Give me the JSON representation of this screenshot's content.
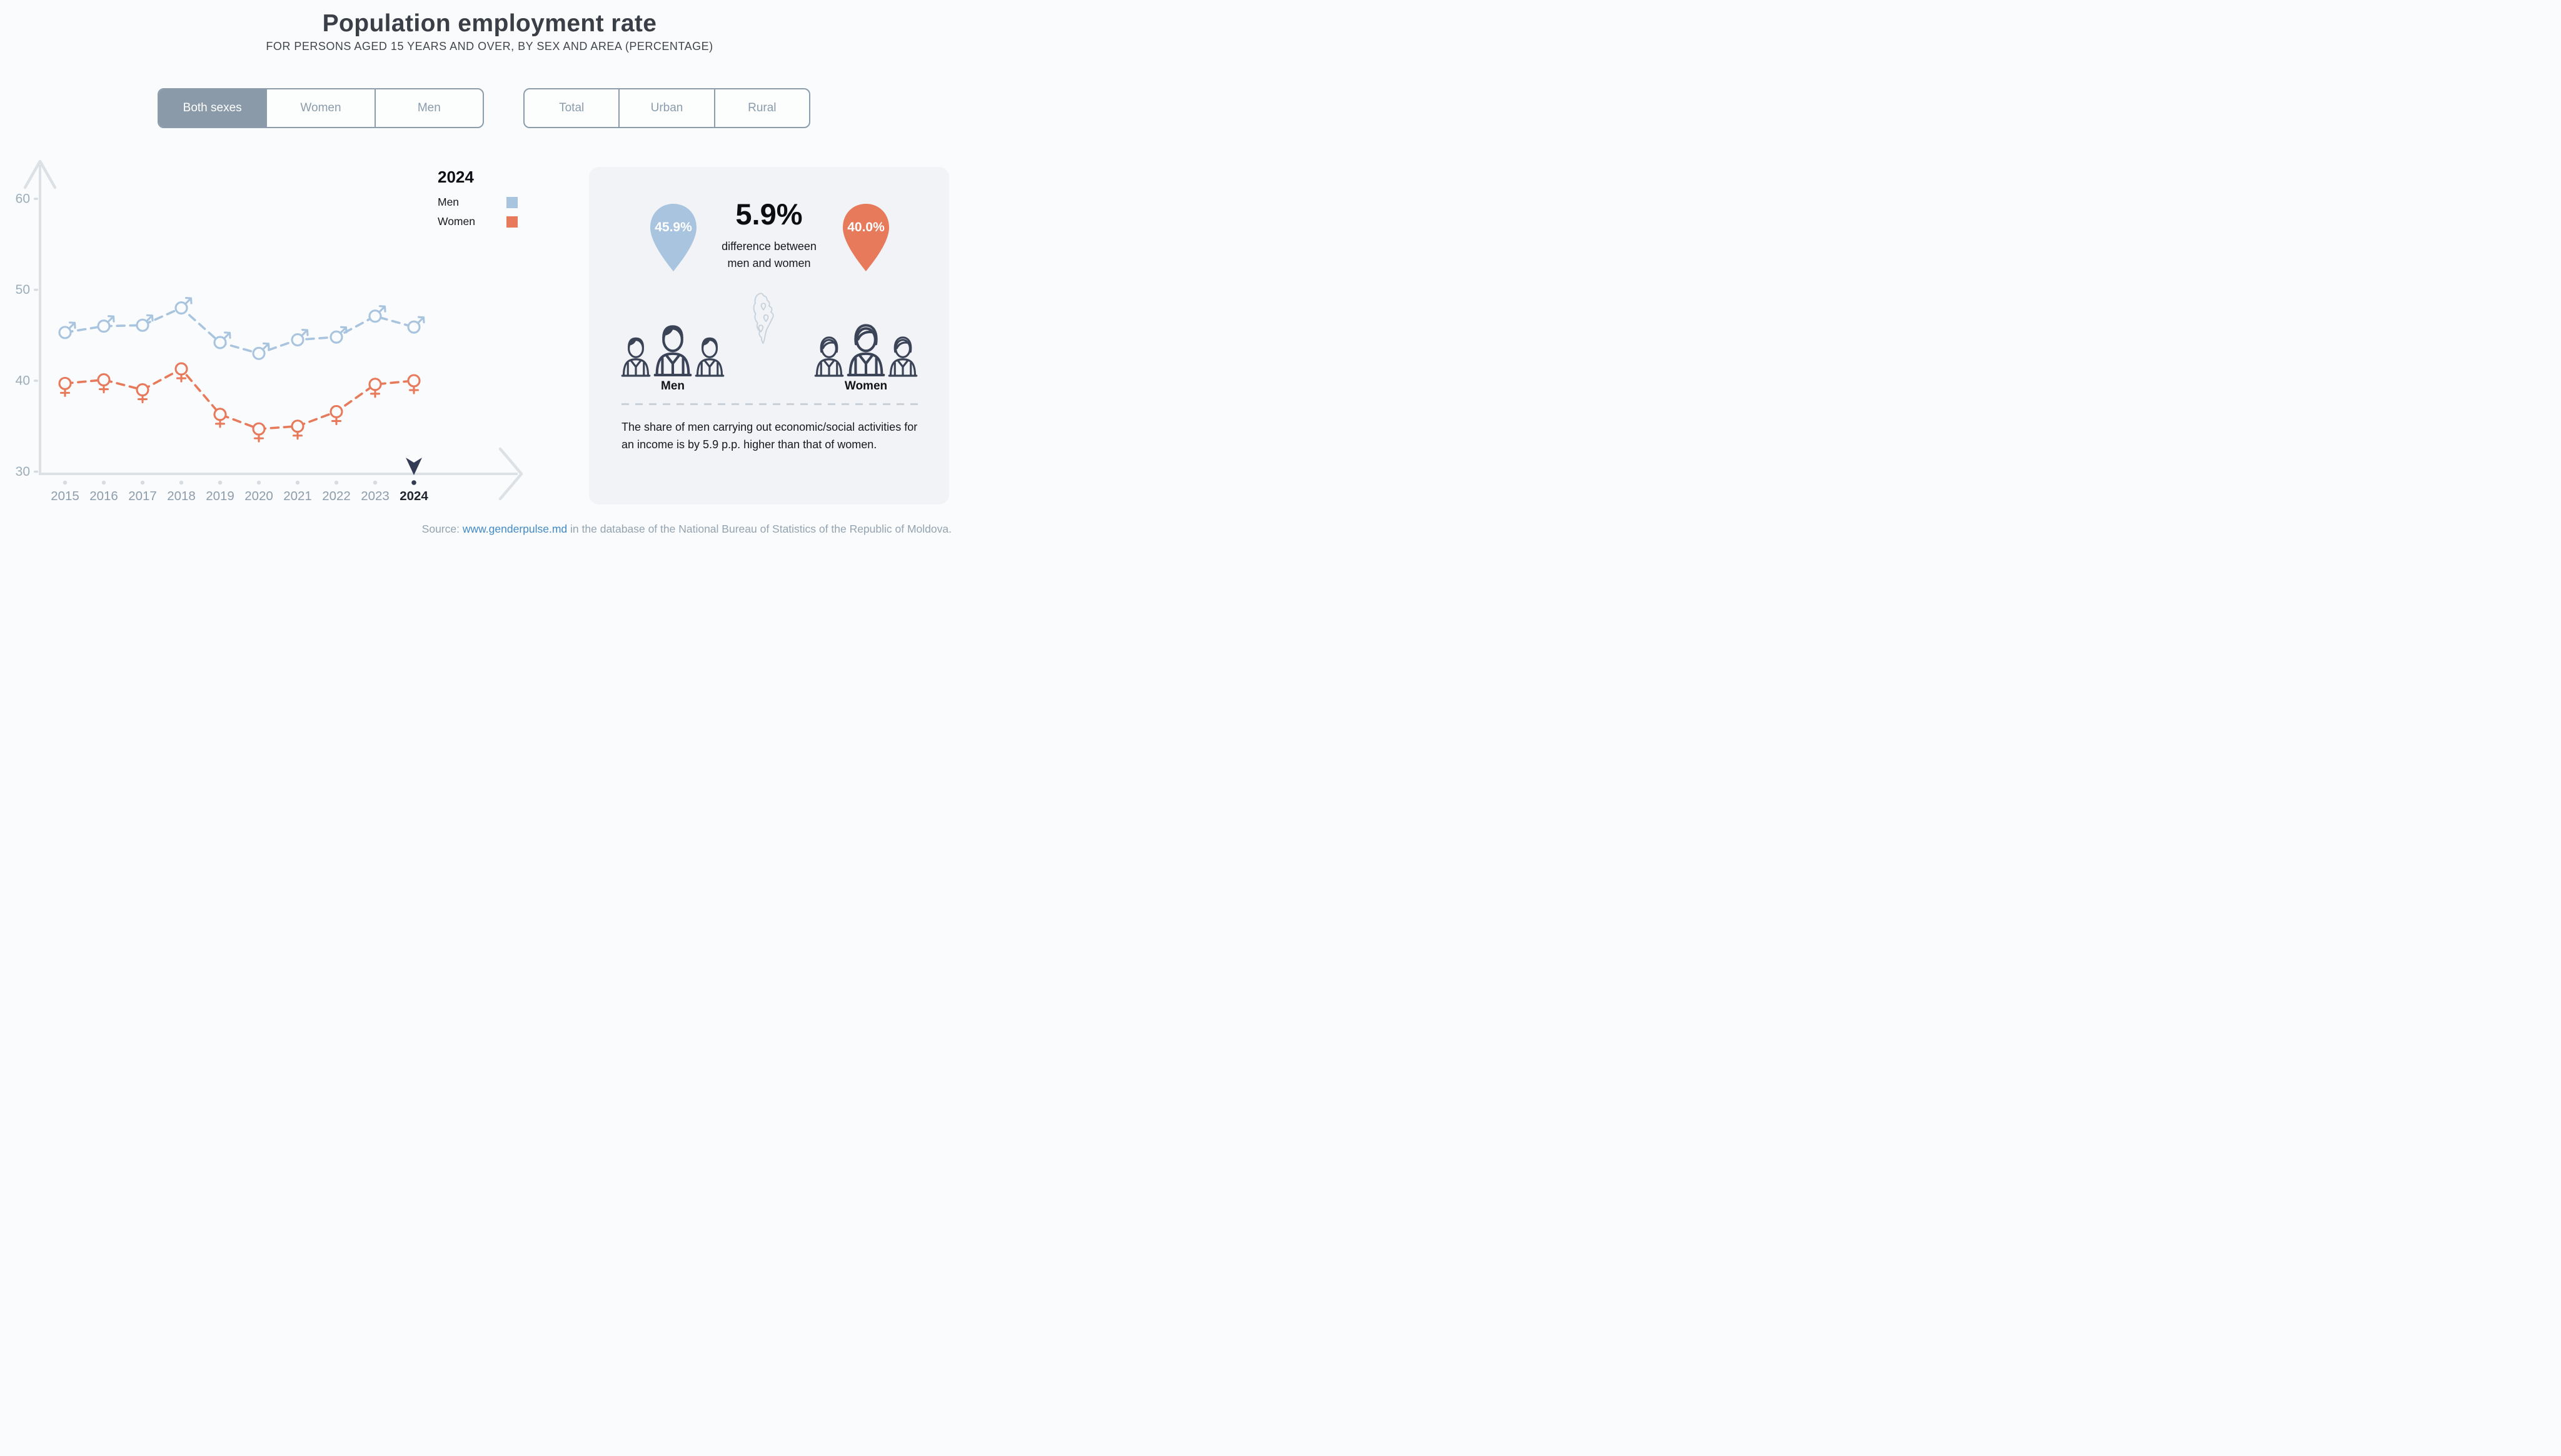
{
  "header": {
    "title": "Population employment rate",
    "subtitle": "FOR PERSONS AGED 15 YEARS AND OVER, BY SEX AND AREA (PERCENTAGE)"
  },
  "controls": {
    "sex_toggle": [
      {
        "label": "Both sexes",
        "selected": true
      },
      {
        "label": "Women",
        "selected": false
      },
      {
        "label": "Men",
        "selected": false
      }
    ],
    "area_toggle": [
      {
        "label": "Total",
        "selected": false
      },
      {
        "label": "Urban",
        "selected": false
      },
      {
        "label": "Rural",
        "selected": false
      }
    ]
  },
  "chart_data": {
    "type": "line",
    "x": [
      2015,
      2016,
      2017,
      2018,
      2019,
      2020,
      2021,
      2022,
      2023,
      2024
    ],
    "series": [
      {
        "name": "Men",
        "marker": "male",
        "color": "#a9c4de",
        "values": [
          45.3,
          46.0,
          46.1,
          48.0,
          44.2,
          43.0,
          44.5,
          44.8,
          47.1,
          45.9
        ]
      },
      {
        "name": "Women",
        "marker": "female",
        "color": "#e87a5c",
        "values": [
          39.7,
          40.1,
          39.0,
          41.3,
          36.3,
          34.7,
          35.0,
          36.6,
          39.6,
          40.0
        ]
      }
    ],
    "yticks": [
      30,
      40,
      50,
      60
    ],
    "ylim": [
      30,
      63
    ],
    "grid": false,
    "line_style": "dashed",
    "legend": {
      "title": "2024",
      "position": "top-right"
    },
    "highlight_year": 2024,
    "highlight_color": "#333b55",
    "axis_color": "#dce1e6",
    "tick_label_color": "#9badb9",
    "year_label_color": "#8e9dab"
  },
  "panel": {
    "men_pin": {
      "value": "45.9%",
      "color": "#a9c4de"
    },
    "women_pin": {
      "value": "40.0%",
      "color": "#e87a5c"
    },
    "difference": {
      "value": "5.9%",
      "caption_line1": "difference between",
      "caption_line2": "men and women"
    },
    "men_label": "Men",
    "women_label": "Women",
    "description": "The share of men carrying out economic/social activities for an income is by 5.9 p.p. higher than that of women."
  },
  "footer": {
    "source_prefix": "Source: ",
    "source_link": "www.genderpulse.md",
    "source_suffix": " in the database of the National Bureau of Statistics of the Republic of Moldova."
  }
}
